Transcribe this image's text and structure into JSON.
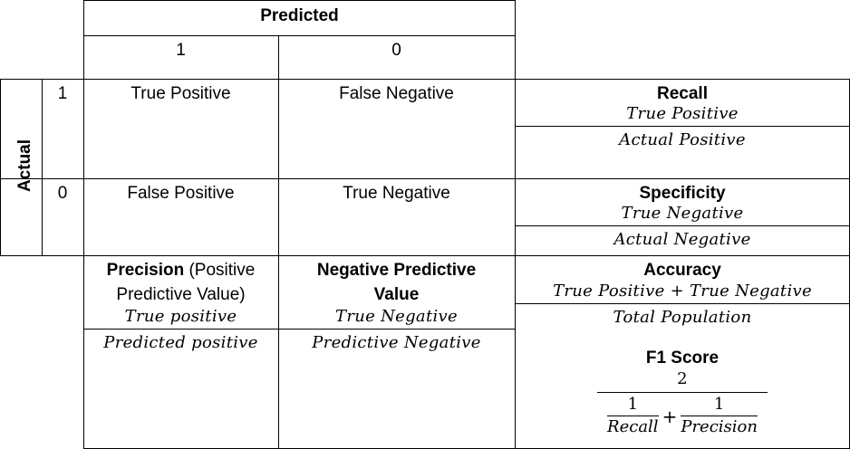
{
  "header": {
    "predicted": "Predicted",
    "col_1": "1",
    "col_0": "0"
  },
  "side": {
    "actual": "Actual",
    "row_1": "1",
    "row_0": "0"
  },
  "matrix": {
    "tp": "True Positive",
    "fn": "False Negative",
    "fp": "False Positive",
    "tn": "True Negative"
  },
  "recall": {
    "title": "Recall",
    "num": "True Positive",
    "den": "Actual Positive"
  },
  "specificity": {
    "title": "Specificity",
    "num": "True Negative",
    "den": "Actual Negative"
  },
  "precision": {
    "title_bold": "Precision",
    "title_rest_1": " (Positive",
    "title_rest_2": "Predictive Value)",
    "num": "True positive",
    "den": "Predicted positive"
  },
  "npv": {
    "title_1": "Negative Predictive",
    "title_2": "Value",
    "num": "True Negative",
    "den": "Predictive Negative"
  },
  "accuracy": {
    "title": "Accuracy",
    "num": "True Positive + True Negative",
    "den": "Total Population"
  },
  "f1": {
    "title": "F1 Score",
    "num": "2",
    "term1_num": "1",
    "term1_den": "Recall",
    "plus": "+",
    "term2_num": "1",
    "term2_den": "Precision"
  }
}
